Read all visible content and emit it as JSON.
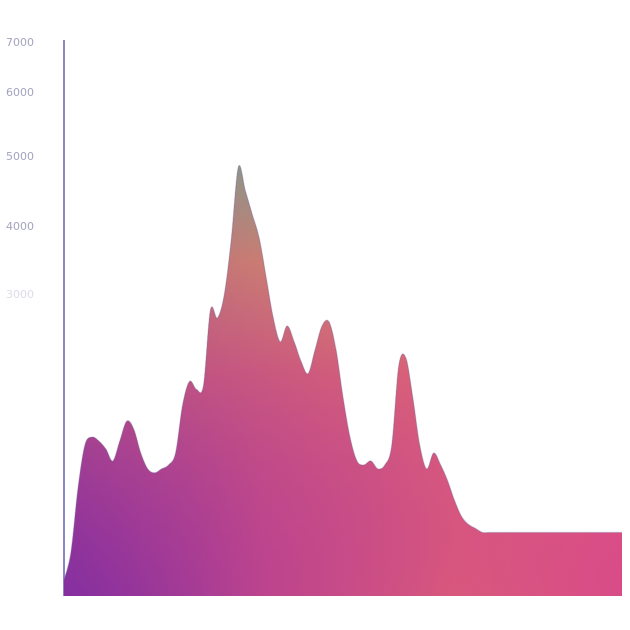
{
  "chart_data": {
    "type": "area",
    "title": "",
    "xlabel": "",
    "ylabel": "",
    "yticks": [
      "7000",
      "6000",
      "5000",
      "4000",
      "3000"
    ],
    "ylim": [
      0,
      7000
    ],
    "x": [
      0,
      1,
      2,
      3,
      4,
      5,
      6,
      7,
      8,
      9,
      10,
      11,
      12,
      13,
      14,
      15,
      16,
      17,
      18,
      19,
      20,
      21,
      22,
      23,
      24,
      25,
      26,
      27,
      28,
      29,
      30,
      31,
      32,
      33,
      34,
      35,
      36,
      37,
      38,
      39,
      40,
      41,
      42,
      43,
      44,
      45,
      46,
      47,
      48,
      49,
      50,
      51,
      52,
      53,
      54,
      55,
      56,
      57,
      58,
      59,
      60,
      61,
      62,
      63,
      64,
      65,
      66,
      67,
      68,
      69,
      70,
      71,
      72,
      73,
      74,
      75,
      76,
      77,
      78,
      79,
      80
    ],
    "values": [
      200,
      550,
      1350,
      1900,
      2000,
      1950,
      1850,
      1700,
      1950,
      2200,
      2100,
      1800,
      1600,
      1550,
      1600,
      1650,
      1800,
      2400,
      2700,
      2600,
      2650,
      3600,
      3500,
      3800,
      4500,
      5400,
      5100,
      4800,
      4500,
      4000,
      3500,
      3200,
      3400,
      3200,
      2950,
      2800,
      3100,
      3400,
      3450,
      3100,
      2500,
      2000,
      1700,
      1650,
      1700,
      1600,
      1650,
      1900,
      2900,
      3000,
      2500,
      1900,
      1600,
      1800,
      1650,
      1450,
      1200,
      1000,
      900,
      850,
      800,
      800,
      800,
      800,
      800,
      800,
      800,
      800,
      800,
      800,
      800,
      800,
      800,
      800,
      800,
      800,
      800,
      800,
      800,
      800,
      800
    ],
    "grid": false,
    "legend": "none",
    "colors": {
      "low": "#8b2fa0",
      "mid": "#e2527a",
      "high_warm": "#f0a458",
      "high_cool": "#8ed48a",
      "axis": "#8a86c6",
      "tick_text": "#9a9ab8"
    }
  }
}
